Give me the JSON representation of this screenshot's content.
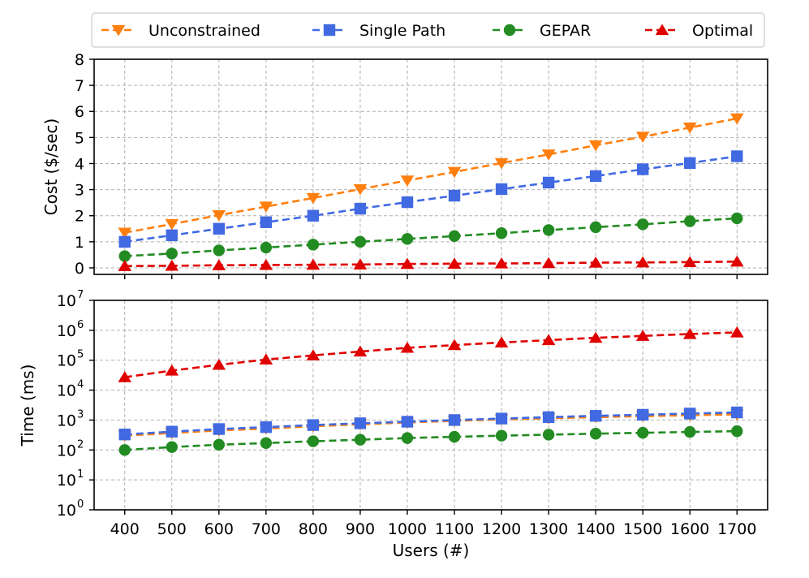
{
  "chart_data": [
    {
      "type": "line",
      "ylabel": "Cost ($/sec)",
      "xlabel": "",
      "yscale": "linear",
      "ylim": [
        0,
        8
      ],
      "yticks": [
        0,
        1,
        2,
        3,
        4,
        5,
        6,
        7,
        8
      ],
      "ytick_labels": [
        "0",
        "1",
        "2",
        "3",
        "4",
        "5",
        "6",
        "7",
        "8"
      ],
      "x": [
        400,
        500,
        600,
        700,
        800,
        900,
        1000,
        1100,
        1200,
        1300,
        1400,
        1500,
        1600,
        1700
      ],
      "series": [
        {
          "name": "Unconstrained",
          "color": "#ff7f0e",
          "marker": "triangle-down",
          "values": [
            1.35,
            1.68,
            2.02,
            2.35,
            2.68,
            3.02,
            3.35,
            3.68,
            4.02,
            4.35,
            4.7,
            5.03,
            5.38,
            5.73
          ]
        },
        {
          "name": "Single Path",
          "color": "#4169e1",
          "marker": "square",
          "values": [
            1.0,
            1.25,
            1.5,
            1.75,
            2.0,
            2.27,
            2.52,
            2.77,
            3.02,
            3.27,
            3.52,
            3.78,
            4.02,
            4.28
          ]
        },
        {
          "name": "GEPAR",
          "color": "#228b22",
          "marker": "circle",
          "values": [
            0.45,
            0.55,
            0.67,
            0.78,
            0.89,
            1.0,
            1.11,
            1.22,
            1.33,
            1.45,
            1.56,
            1.67,
            1.79,
            1.9
          ]
        },
        {
          "name": "Optimal",
          "color": "#e00000",
          "marker": "triangle-up",
          "values": [
            0.07,
            0.08,
            0.1,
            0.11,
            0.12,
            0.13,
            0.15,
            0.16,
            0.17,
            0.18,
            0.2,
            0.21,
            0.22,
            0.24
          ]
        }
      ]
    },
    {
      "type": "line",
      "ylabel": "Time (ms)",
      "xlabel": "Users (#)",
      "yscale": "log",
      "ylim": [
        1,
        10000000
      ],
      "yticks": [
        1,
        10,
        100,
        1000,
        10000,
        100000,
        1000000,
        10000000
      ],
      "ytick_labels": [
        {
          "base": "10",
          "exp": "0"
        },
        {
          "base": "10",
          "exp": "1"
        },
        {
          "base": "10",
          "exp": "2"
        },
        {
          "base": "10",
          "exp": "3"
        },
        {
          "base": "10",
          "exp": "4"
        },
        {
          "base": "10",
          "exp": "5"
        },
        {
          "base": "10",
          "exp": "6"
        },
        {
          "base": "10",
          "exp": "7"
        }
      ],
      "x": [
        400,
        500,
        600,
        700,
        800,
        900,
        1000,
        1100,
        1200,
        1300,
        1400,
        1500,
        1600,
        1700
      ],
      "xtick_labels": [
        "400",
        "500",
        "600",
        "700",
        "800",
        "900",
        "1000",
        "1100",
        "1200",
        "1300",
        "1400",
        "1500",
        "1600",
        "1700"
      ],
      "series": [
        {
          "name": "Unconstrained",
          "color": "#ff7f0e",
          "marker": "triangle-down",
          "values": [
            300,
            370,
            450,
            520,
            620,
            720,
            830,
            940,
            1050,
            1150,
            1250,
            1350,
            1450,
            1550
          ]
        },
        {
          "name": "Single Path",
          "color": "#4169e1",
          "marker": "square",
          "values": [
            330,
            410,
            500,
            580,
            680,
            780,
            880,
            1000,
            1120,
            1250,
            1380,
            1500,
            1650,
            1800
          ]
        },
        {
          "name": "GEPAR",
          "color": "#228b22",
          "marker": "circle",
          "values": [
            100,
            125,
            150,
            170,
            195,
            220,
            250,
            275,
            300,
            325,
            350,
            375,
            400,
            425
          ]
        },
        {
          "name": "Optimal",
          "color": "#e00000",
          "marker": "triangle-up",
          "values": [
            27000,
            45000,
            70000,
            105000,
            145000,
            195000,
            260000,
            320000,
            390000,
            470000,
            560000,
            650000,
            750000,
            850000
          ]
        }
      ]
    }
  ],
  "legend": {
    "placement": "top-center",
    "entries": [
      {
        "label": "Unconstrained",
        "color": "#ff7f0e",
        "marker": "triangle-down"
      },
      {
        "label": "Single Path",
        "color": "#4169e1",
        "marker": "square"
      },
      {
        "label": "GEPAR",
        "color": "#228b22",
        "marker": "circle"
      },
      {
        "label": "Optimal",
        "color": "#e00000",
        "marker": "triangle-up"
      }
    ]
  }
}
